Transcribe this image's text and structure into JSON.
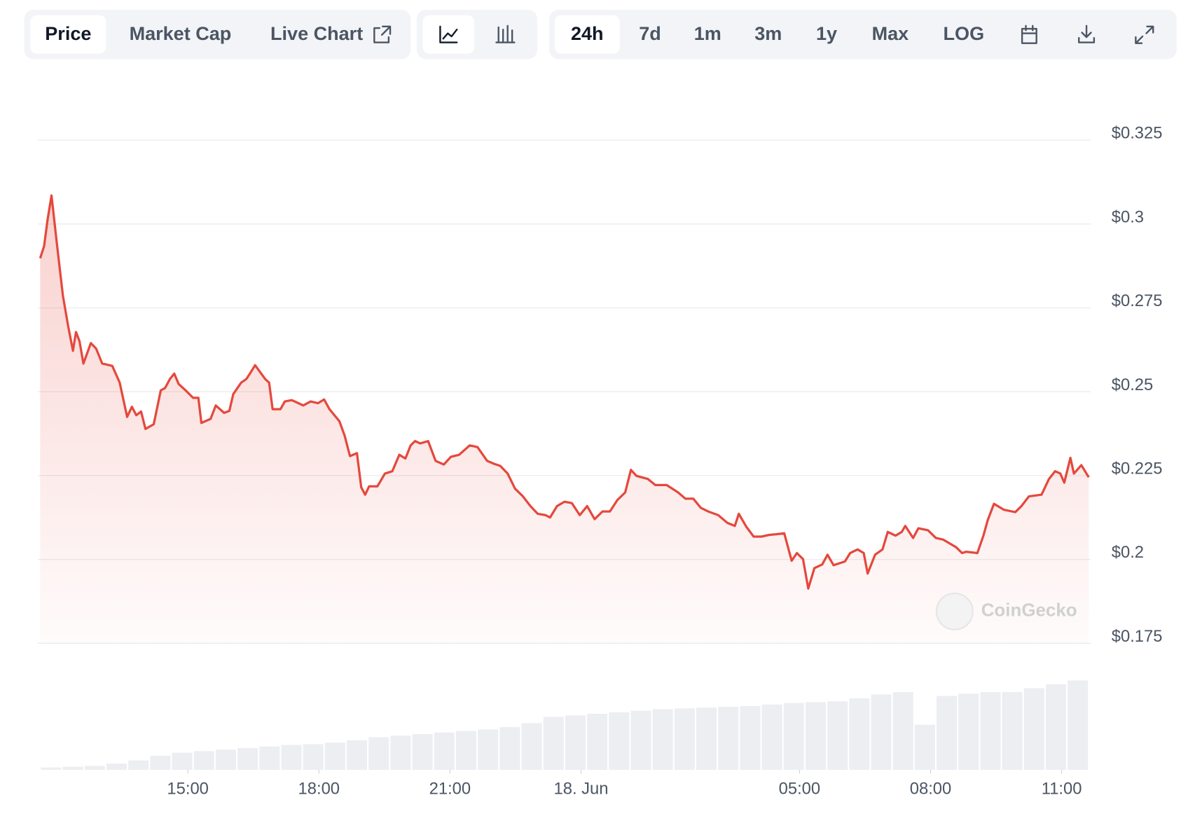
{
  "toolbar": {
    "tabs": [
      "Price",
      "Market Cap",
      "Live Chart"
    ],
    "ranges": [
      "24h",
      "7d",
      "1m",
      "3m",
      "1y",
      "Max",
      "LOG"
    ]
  },
  "chart_data": {
    "type": "line",
    "color": "#e5483d",
    "watermark": "CoinGecko",
    "x": [
      11.62,
      11.71,
      11.79,
      11.88,
      12.0,
      12.14,
      12.26,
      12.37,
      12.44,
      12.52,
      12.61,
      12.78,
      12.9,
      13.04,
      13.27,
      13.44,
      13.61,
      13.72,
      13.82,
      13.93,
      14.03,
      14.22,
      14.38,
      14.48,
      14.59,
      14.69,
      14.79,
      14.95,
      15.12,
      15.24,
      15.31,
      15.52,
      15.64,
      15.83,
      15.95,
      16.04,
      16.22,
      16.34,
      16.42,
      16.54,
      16.77,
      16.86,
      16.94,
      17.12,
      17.22,
      17.38,
      17.64,
      17.81,
      17.98,
      18.12,
      18.24,
      18.47,
      18.59,
      18.71,
      18.87,
      18.97,
      19.06,
      19.15,
      19.34,
      19.51,
      19.68,
      19.84,
      19.98,
      20.1,
      20.2,
      20.32,
      20.5,
      20.67,
      20.86,
      21.02,
      21.21,
      21.45,
      21.63,
      21.85,
      22.01,
      22.15,
      22.32,
      22.49,
      22.67,
      22.84,
      23.01,
      23.19,
      23.29,
      23.45,
      23.62,
      23.79,
      23.97,
      24.14,
      24.31,
      24.49,
      24.66,
      24.83,
      25.01,
      25.14,
      25.27,
      25.53,
      25.7,
      25.96,
      26.22,
      26.39,
      26.57,
      26.74,
      26.91,
      27.14,
      27.35,
      27.52,
      27.61,
      27.78,
      27.95,
      28.13,
      28.3,
      28.47,
      28.65,
      28.82,
      28.94,
      29.08,
      29.2,
      29.34,
      29.52,
      29.64,
      29.78,
      30.04,
      30.16,
      30.33,
      30.47,
      30.56,
      30.73,
      30.9,
      31.02,
      31.2,
      31.34,
      31.42,
      31.6,
      31.72,
      31.94,
      32.12,
      32.29,
      32.46,
      32.58,
      32.72,
      32.81,
      33.07,
      33.21,
      33.31,
      33.45,
      33.68,
      33.94,
      34.08,
      34.25,
      34.54,
      34.71,
      34.85,
      34.97,
      35.06,
      35.2,
      35.28,
      35.45,
      35.62
    ],
    "values": [
      0.2898,
      0.2934,
      0.3013,
      0.3085,
      0.2945,
      0.2787,
      0.2696,
      0.2622,
      0.2678,
      0.2651,
      0.2584,
      0.2645,
      0.2629,
      0.2584,
      0.2577,
      0.2527,
      0.2425,
      0.2455,
      0.243,
      0.2441,
      0.2389,
      0.2403,
      0.2504,
      0.2511,
      0.2538,
      0.2554,
      0.2523,
      0.2504,
      0.2482,
      0.2482,
      0.2407,
      0.2419,
      0.2459,
      0.2437,
      0.2443,
      0.2493,
      0.2527,
      0.2538,
      0.2554,
      0.2579,
      0.2538,
      0.2527,
      0.2448,
      0.2448,
      0.2471,
      0.2475,
      0.2459,
      0.2471,
      0.2466,
      0.2477,
      0.2448,
      0.2412,
      0.2369,
      0.2308,
      0.2317,
      0.2215,
      0.2193,
      0.2218,
      0.2218,
      0.2256,
      0.2263,
      0.2312,
      0.2301,
      0.234,
      0.2353,
      0.2346,
      0.2353,
      0.2294,
      0.2283,
      0.2306,
      0.2312,
      0.234,
      0.2335,
      0.2294,
      0.2285,
      0.2279,
      0.2256,
      0.2211,
      0.2188,
      0.2159,
      0.2136,
      0.2132,
      0.2125,
      0.2159,
      0.2172,
      0.2168,
      0.2132,
      0.2159,
      0.212,
      0.2143,
      0.2143,
      0.2177,
      0.22,
      0.2267,
      0.2249,
      0.224,
      0.2222,
      0.2222,
      0.22,
      0.2181,
      0.2181,
      0.2154,
      0.2143,
      0.2132,
      0.2109,
      0.21,
      0.2136,
      0.2098,
      0.2068,
      0.2068,
      0.2073,
      0.2075,
      0.2078,
      0.1996,
      0.2019,
      0.2001,
      0.1913,
      0.1974,
      0.1985,
      0.2014,
      0.1983,
      0.1994,
      0.2019,
      0.203,
      0.2019,
      0.1958,
      0.2014,
      0.203,
      0.2082,
      0.2071,
      0.2082,
      0.21,
      0.2064,
      0.2093,
      0.2087,
      0.2064,
      0.2059,
      0.2046,
      0.2037,
      0.2019,
      0.2023,
      0.2019,
      0.2071,
      0.2118,
      0.2166,
      0.2148,
      0.2141,
      0.2159,
      0.2188,
      0.2193,
      0.224,
      0.2263,
      0.2256,
      0.2229,
      0.2303,
      0.2256,
      0.2281,
      0.2245
    ],
    "volume": {
      "color": "#eceef1",
      "values": [
        3,
        4,
        5,
        8,
        12,
        18,
        22,
        24,
        26,
        28,
        30,
        32,
        33,
        35,
        38,
        42,
        44,
        46,
        48,
        50,
        52,
        55,
        60,
        68,
        70,
        72,
        74,
        76,
        78,
        79,
        80,
        81,
        82,
        84,
        86,
        87,
        88,
        92,
        97,
        100,
        58,
        95,
        98,
        100,
        100,
        105,
        110,
        115
      ]
    },
    "xlim": [
      11.62,
      35.62
    ],
    "xticks": [
      {
        "value": 15,
        "label": "15:00"
      },
      {
        "value": 18,
        "label": "18:00"
      },
      {
        "value": 21,
        "label": "21:00"
      },
      {
        "value": 24,
        "label": "18. Jun"
      },
      {
        "value": 29,
        "label": "05:00"
      },
      {
        "value": 32,
        "label": "08:00"
      },
      {
        "value": 35,
        "label": "11:00"
      }
    ],
    "ylim": [
      0.175,
      0.325
    ],
    "yticks": [
      {
        "value": 0.325,
        "label": "$0.325"
      },
      {
        "value": 0.3,
        "label": "$0.3"
      },
      {
        "value": 0.275,
        "label": "$0.275"
      },
      {
        "value": 0.25,
        "label": "$0.25"
      },
      {
        "value": 0.225,
        "label": "$0.225"
      },
      {
        "value": 0.2,
        "label": "$0.2"
      },
      {
        "value": 0.175,
        "label": "$0.175"
      }
    ],
    "grid": true
  }
}
